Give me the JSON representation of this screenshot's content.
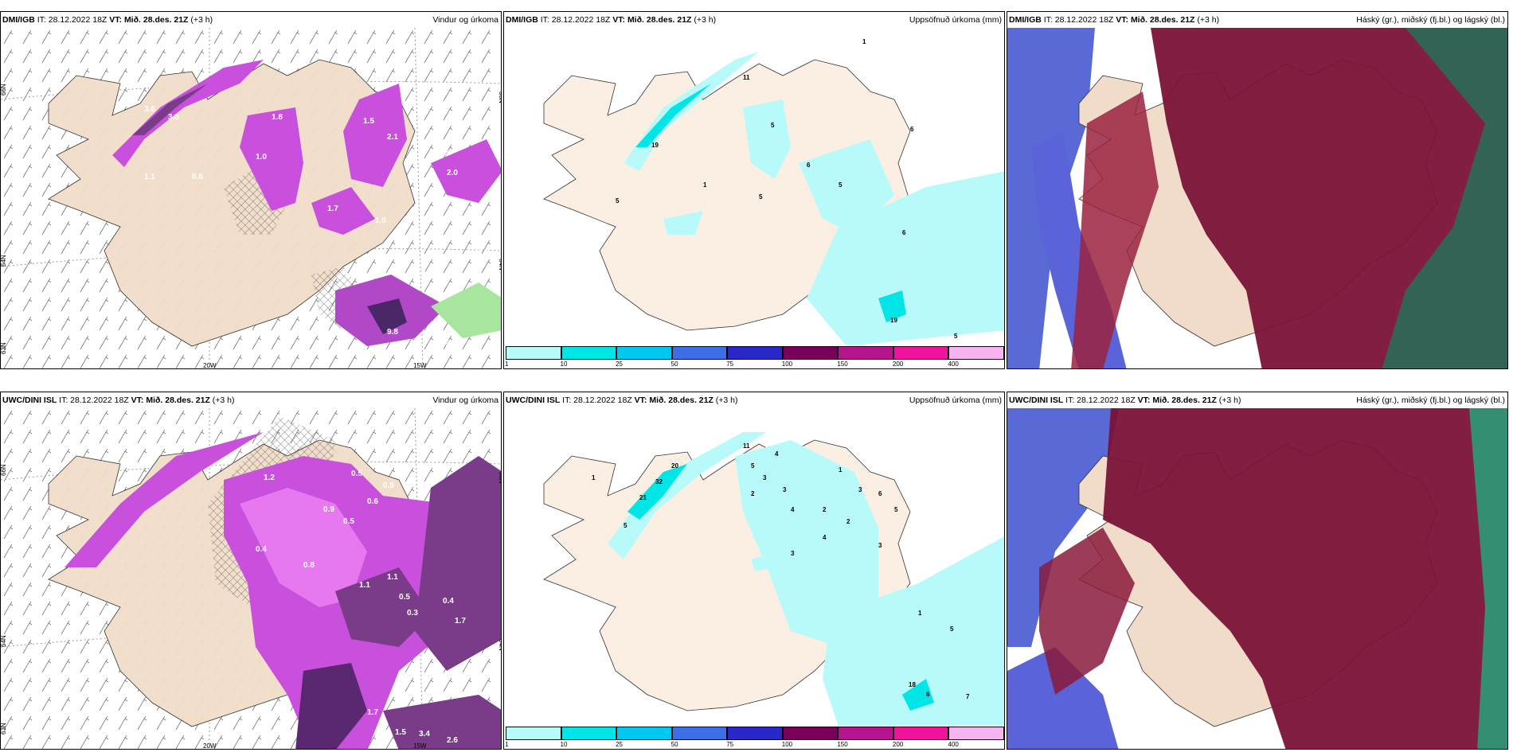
{
  "panels": [
    {
      "id": "top-wind",
      "model": "DMI/IGB",
      "it": "IT: 28.12.2022 18Z",
      "vt_label": "VT:",
      "vt_value": "Mið. 28.des. 21Z",
      "lead": "(+3 h)",
      "title": "Vindur og úrkoma"
    },
    {
      "id": "top-precip",
      "model": "DMI/IGB",
      "it": "IT: 28.12.2022 18Z",
      "vt_label": "VT:",
      "vt_value": "Mið. 28.des. 21Z",
      "lead": "(+3 h)",
      "title": "Uppsöfnuð úrkoma (mm)"
    },
    {
      "id": "top-cloud",
      "model": "DMI/IGB",
      "it": "IT: 28.12.2022 18Z",
      "vt_label": "VT:",
      "vt_value": "Mið. 28.des. 21Z",
      "lead": "(+3 h)",
      "title": "Háský (gr.), miðský (fj.bl.) og lágský (bl.)"
    },
    {
      "id": "bottom-wind",
      "model": "UWC/DINI ISL",
      "it": "IT: 28.12.2022 18Z",
      "vt_label": "VT:",
      "vt_value": "Mið. 28.des. 21Z",
      "lead": "(+3 h)",
      "title": "Vindur og úrkoma"
    },
    {
      "id": "bottom-precip",
      "model": "UWC/DINI ISL",
      "it": "IT: 28.12.2022 18Z",
      "vt_label": "VT:",
      "vt_value": "Mið. 28.des. 21Z",
      "lead": "(+3 h)",
      "title": "Uppsöfnuð úrkoma (mm)"
    },
    {
      "id": "bottom-cloud",
      "model": "UWC/DINI ISL",
      "it": "IT: 28.12.2022 18Z",
      "vt_label": "VT:",
      "vt_value": "Mið. 28.des. 21Z",
      "lead": "(+3 h)",
      "title": "Háský (gr.), miðský (fj.bl.) og lágský (bl.)"
    }
  ],
  "axes": {
    "lat_66": "66N",
    "lat_64": "64N",
    "lat_63": "63N",
    "lon_20": "20W",
    "lon_15": "15W"
  },
  "colorbar": {
    "ticks": [
      "1",
      "10",
      "25",
      "50",
      "75",
      "100",
      "150",
      "200",
      "400"
    ],
    "colors": [
      "#b8fafa",
      "#00e6e6",
      "#00c8f0",
      "#3c6ee6",
      "#2828c8",
      "#78005a",
      "#b4148c",
      "#f0149c",
      "#f8b4f0"
    ]
  },
  "labels": {
    "top_wind": [
      "3.6",
      "3.8",
      "1.8",
      "1.5",
      "2.1",
      "1.0",
      "1.3",
      "0.6",
      "1.1",
      "2.0",
      "1.6",
      "1.7",
      "1.0",
      "2.2",
      "0.4",
      "9.8",
      "0.5",
      "0.5"
    ],
    "top_precip": [
      "1",
      "11",
      "5",
      "19",
      "5",
      "6",
      "1",
      "5",
      "6",
      "6",
      "5",
      "19",
      "5"
    ],
    "bottom_wind": [
      "0.4",
      "0.9",
      "1.2",
      "0.5",
      "0.6",
      "0.9",
      "0.5",
      "0.4",
      "0.8",
      "1.1",
      "1.1",
      "0.5",
      "0.3",
      "1.7",
      "0.4",
      "2.6",
      "3.4",
      "1.5",
      "1.7"
    ],
    "bottom_precip": [
      "11",
      "20",
      "32",
      "21",
      "1",
      "5",
      "5",
      "4",
      "3",
      "2",
      "4",
      "3",
      "1",
      "2",
      "3",
      "2",
      "6",
      "4",
      "3",
      "5",
      "3",
      "7",
      "18",
      "6",
      "5",
      "1"
    ]
  }
}
